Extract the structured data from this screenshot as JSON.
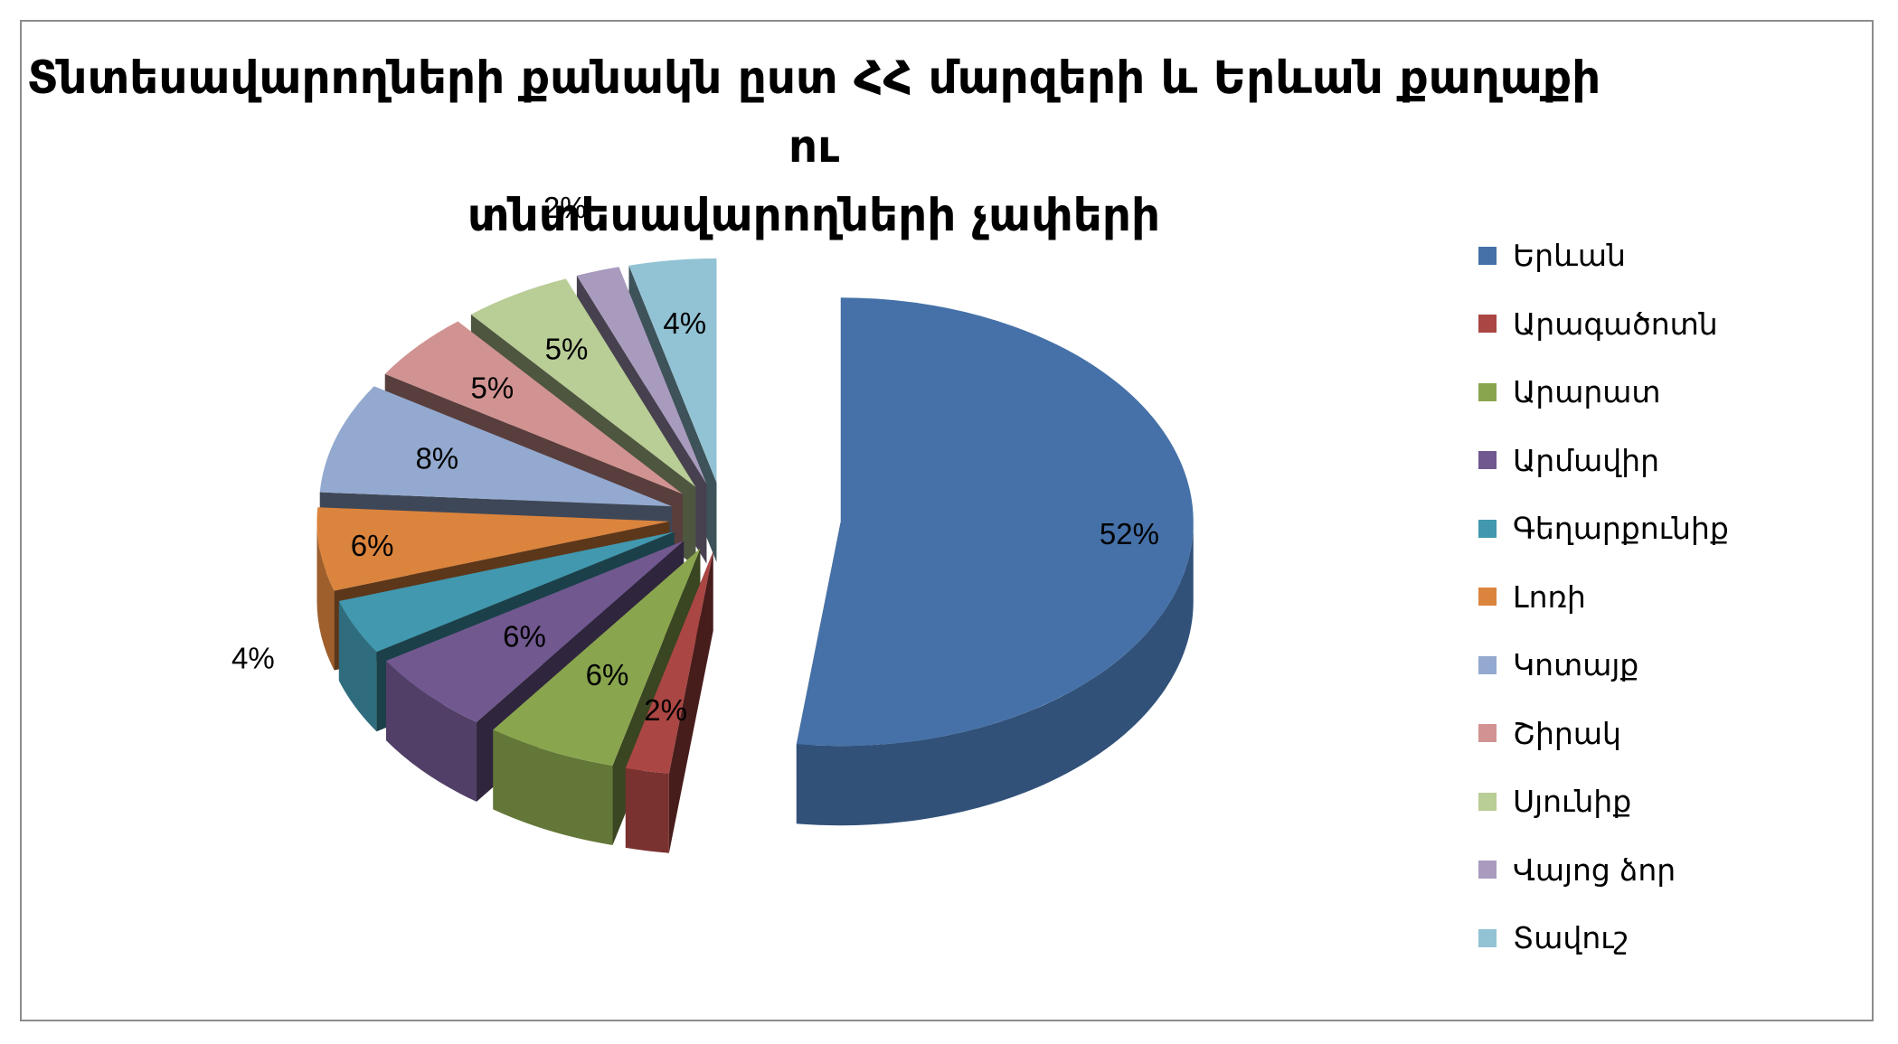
{
  "chart_data": {
    "type": "pie",
    "title": [
      "Տնտեսավարողների քանակն ըստ ՀՀ մարզերի և Երևան քաղաքի ու",
      "տնտեսավարողների չափերի"
    ],
    "legend_position": "right",
    "categories": [
      "Երևան",
      "Արագածոտն",
      "Արարատ",
      "Արմավիր",
      "Գեղարքունիք",
      "Լոռի",
      "Կոտայք",
      "Շիրակ",
      "Սյունիք",
      "Վայոց ձոր",
      "Տավուշ"
    ],
    "values": [
      52,
      2,
      6,
      6,
      4,
      6,
      8,
      5,
      5,
      2,
      4
    ],
    "labels": [
      "52%",
      "2%",
      "6%",
      "6%",
      "4%",
      "6%",
      "8%",
      "5%",
      "5%",
      "2%",
      "4%"
    ],
    "colors": [
      "#4571a8",
      "#aa4643",
      "#89a54e",
      "#71588f",
      "#4198af",
      "#db843d",
      "#93a9cf",
      "#d19392",
      "#b9cd96",
      "#a99bbd",
      "#92c3d4"
    ],
    "exploded": true,
    "three_d": true
  }
}
